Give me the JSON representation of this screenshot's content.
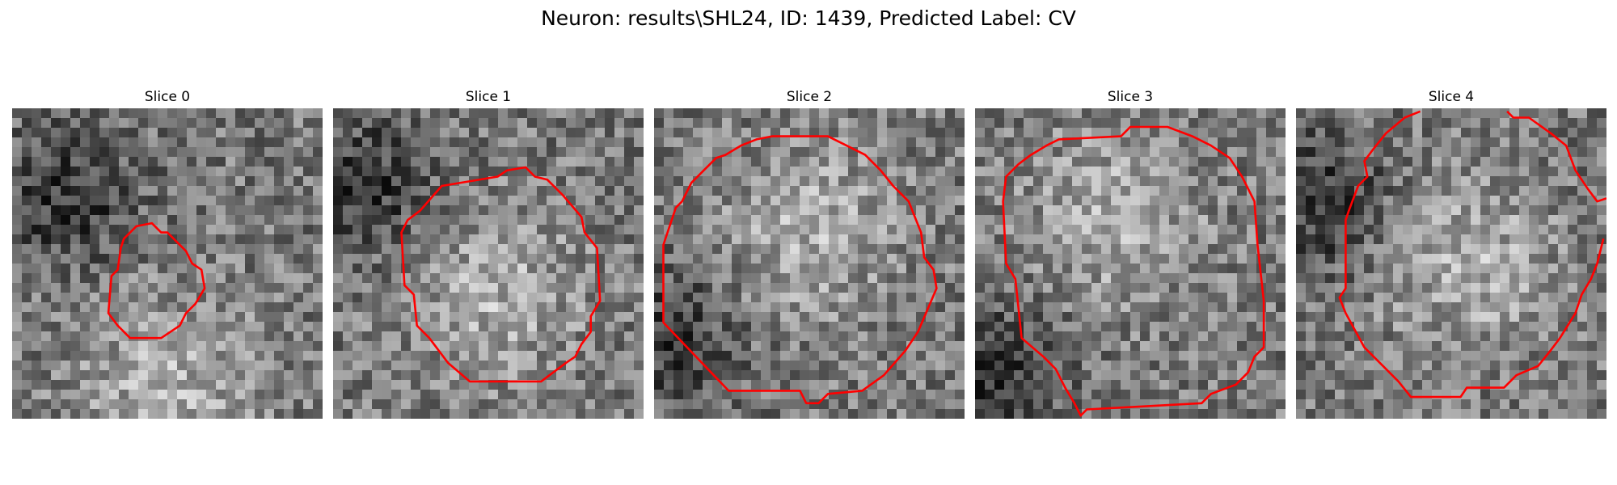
{
  "figure": {
    "title": "Neuron: results\\SHL24, ID: 1439, Predicted Label: CV"
  },
  "panels": [
    {
      "title": "Slice 0",
      "contour_color": "#ff0000",
      "seed": 11,
      "bright_center": [
        0.5,
        0.88
      ],
      "dark_center": [
        0.18,
        0.28
      ],
      "contour": [
        [
          0.36,
          0.42
        ],
        [
          0.4,
          0.38
        ],
        [
          0.45,
          0.37
        ],
        [
          0.48,
          0.4
        ],
        [
          0.5,
          0.4
        ],
        [
          0.53,
          0.43
        ],
        [
          0.56,
          0.46
        ],
        [
          0.58,
          0.5
        ],
        [
          0.61,
          0.52
        ],
        [
          0.62,
          0.58
        ],
        [
          0.59,
          0.63
        ],
        [
          0.56,
          0.66
        ],
        [
          0.54,
          0.7
        ],
        [
          0.48,
          0.74
        ],
        [
          0.38,
          0.74
        ],
        [
          0.34,
          0.7
        ],
        [
          0.31,
          0.66
        ],
        [
          0.32,
          0.54
        ],
        [
          0.34,
          0.52
        ],
        [
          0.35,
          0.45
        ]
      ]
    },
    {
      "title": "Slice 1",
      "contour_color": "#ff0000",
      "seed": 23,
      "bright_center": [
        0.52,
        0.6
      ],
      "dark_center": [
        0.1,
        0.25
      ],
      "contour": [
        [
          0.28,
          0.33
        ],
        [
          0.35,
          0.25
        ],
        [
          0.53,
          0.22
        ],
        [
          0.56,
          0.2
        ],
        [
          0.62,
          0.19
        ],
        [
          0.65,
          0.22
        ],
        [
          0.69,
          0.23
        ],
        [
          0.74,
          0.28
        ],
        [
          0.8,
          0.35
        ],
        [
          0.81,
          0.4
        ],
        [
          0.85,
          0.45
        ],
        [
          0.86,
          0.62
        ],
        [
          0.83,
          0.67
        ],
        [
          0.83,
          0.72
        ],
        [
          0.8,
          0.76
        ],
        [
          0.78,
          0.8
        ],
        [
          0.75,
          0.82
        ],
        [
          0.71,
          0.85
        ],
        [
          0.67,
          0.88
        ],
        [
          0.44,
          0.88
        ],
        [
          0.37,
          0.82
        ],
        [
          0.31,
          0.74
        ],
        [
          0.27,
          0.7
        ],
        [
          0.26,
          0.6
        ],
        [
          0.23,
          0.57
        ],
        [
          0.22,
          0.4
        ],
        [
          0.24,
          0.36
        ]
      ]
    },
    {
      "title": "Slice 2",
      "contour_color": "#ff0000",
      "seed": 37,
      "bright_center": [
        0.5,
        0.4
      ],
      "dark_center": [
        0.05,
        0.75
      ],
      "contour": [
        [
          0.05,
          0.38
        ],
        [
          0.07,
          0.32
        ],
        [
          0.09,
          0.3
        ],
        [
          0.12,
          0.24
        ],
        [
          0.16,
          0.2
        ],
        [
          0.2,
          0.16
        ],
        [
          0.23,
          0.15
        ],
        [
          0.28,
          0.12
        ],
        [
          0.33,
          0.1
        ],
        [
          0.38,
          0.09
        ],
        [
          0.56,
          0.09
        ],
        [
          0.62,
          0.12
        ],
        [
          0.68,
          0.15
        ],
        [
          0.73,
          0.2
        ],
        [
          0.77,
          0.25
        ],
        [
          0.82,
          0.3
        ],
        [
          0.86,
          0.4
        ],
        [
          0.87,
          0.48
        ],
        [
          0.9,
          0.52
        ],
        [
          0.91,
          0.58
        ],
        [
          0.88,
          0.65
        ],
        [
          0.85,
          0.72
        ],
        [
          0.81,
          0.78
        ],
        [
          0.74,
          0.86
        ],
        [
          0.67,
          0.91
        ],
        [
          0.56,
          0.92
        ],
        [
          0.53,
          0.95
        ],
        [
          0.49,
          0.95
        ],
        [
          0.47,
          0.91
        ],
        [
          0.24,
          0.91
        ],
        [
          0.03,
          0.69
        ],
        [
          0.03,
          0.44
        ]
      ]
    },
    {
      "title": "Slice 3",
      "contour_color": "#ff0000",
      "seed": 53,
      "bright_center": [
        0.45,
        0.35
      ],
      "dark_center": [
        0.05,
        0.85
      ],
      "contour": [
        [
          0.1,
          0.22
        ],
        [
          0.14,
          0.18
        ],
        [
          0.18,
          0.15
        ],
        [
          0.23,
          0.12
        ],
        [
          0.27,
          0.1
        ],
        [
          0.47,
          0.09
        ],
        [
          0.5,
          0.06
        ],
        [
          0.62,
          0.06
        ],
        [
          0.7,
          0.09
        ],
        [
          0.76,
          0.12
        ],
        [
          0.82,
          0.16
        ],
        [
          0.86,
          0.22
        ],
        [
          0.9,
          0.3
        ],
        [
          0.91,
          0.44
        ],
        [
          0.93,
          0.62
        ],
        [
          0.93,
          0.77
        ],
        [
          0.9,
          0.8
        ],
        [
          0.88,
          0.85
        ],
        [
          0.84,
          0.89
        ],
        [
          0.76,
          0.92
        ],
        [
          0.73,
          0.95
        ],
        [
          0.36,
          0.97
        ],
        [
          0.34,
          0.99
        ],
        [
          0.32,
          0.95
        ],
        [
          0.29,
          0.9
        ],
        [
          0.26,
          0.84
        ],
        [
          0.22,
          0.8
        ],
        [
          0.15,
          0.74
        ],
        [
          0.13,
          0.55
        ],
        [
          0.1,
          0.5
        ],
        [
          0.09,
          0.3
        ]
      ]
    },
    {
      "title": "Slice 4",
      "contour_color": "#ff0000",
      "seed": 71,
      "bright_center": [
        0.55,
        0.5
      ],
      "dark_center": [
        0.08,
        0.3
      ],
      "contour": [
        [
          0.4,
          0.01
        ],
        [
          0.35,
          0.03
        ],
        [
          0.29,
          0.08
        ],
        [
          0.25,
          0.13
        ],
        [
          0.22,
          0.17
        ],
        [
          0.23,
          0.22
        ],
        [
          0.2,
          0.25
        ],
        [
          0.17,
          0.33
        ],
        [
          0.16,
          0.36
        ],
        [
          0.16,
          0.58
        ],
        [
          0.14,
          0.61
        ],
        [
          0.16,
          0.66
        ],
        [
          0.22,
          0.77
        ],
        [
          0.28,
          0.83
        ],
        [
          0.33,
          0.88
        ],
        [
          0.37,
          0.93
        ],
        [
          0.53,
          0.93
        ],
        [
          0.55,
          0.9
        ],
        [
          0.67,
          0.9
        ],
        [
          0.71,
          0.86
        ],
        [
          0.78,
          0.83
        ],
        [
          0.82,
          0.78
        ],
        [
          0.85,
          0.74
        ],
        [
          0.9,
          0.66
        ],
        [
          0.92,
          0.6
        ],
        [
          0.95,
          0.55
        ],
        [
          0.97,
          0.5
        ],
        [
          0.99,
          0.42
        ]
      ],
      "contour2": [
        [
          0.68,
          0.01
        ],
        [
          0.7,
          0.03
        ],
        [
          0.75,
          0.03
        ],
        [
          0.82,
          0.08
        ],
        [
          0.87,
          0.12
        ],
        [
          0.9,
          0.2
        ],
        [
          0.94,
          0.26
        ],
        [
          0.97,
          0.3
        ],
        [
          1.0,
          0.29
        ]
      ]
    }
  ]
}
